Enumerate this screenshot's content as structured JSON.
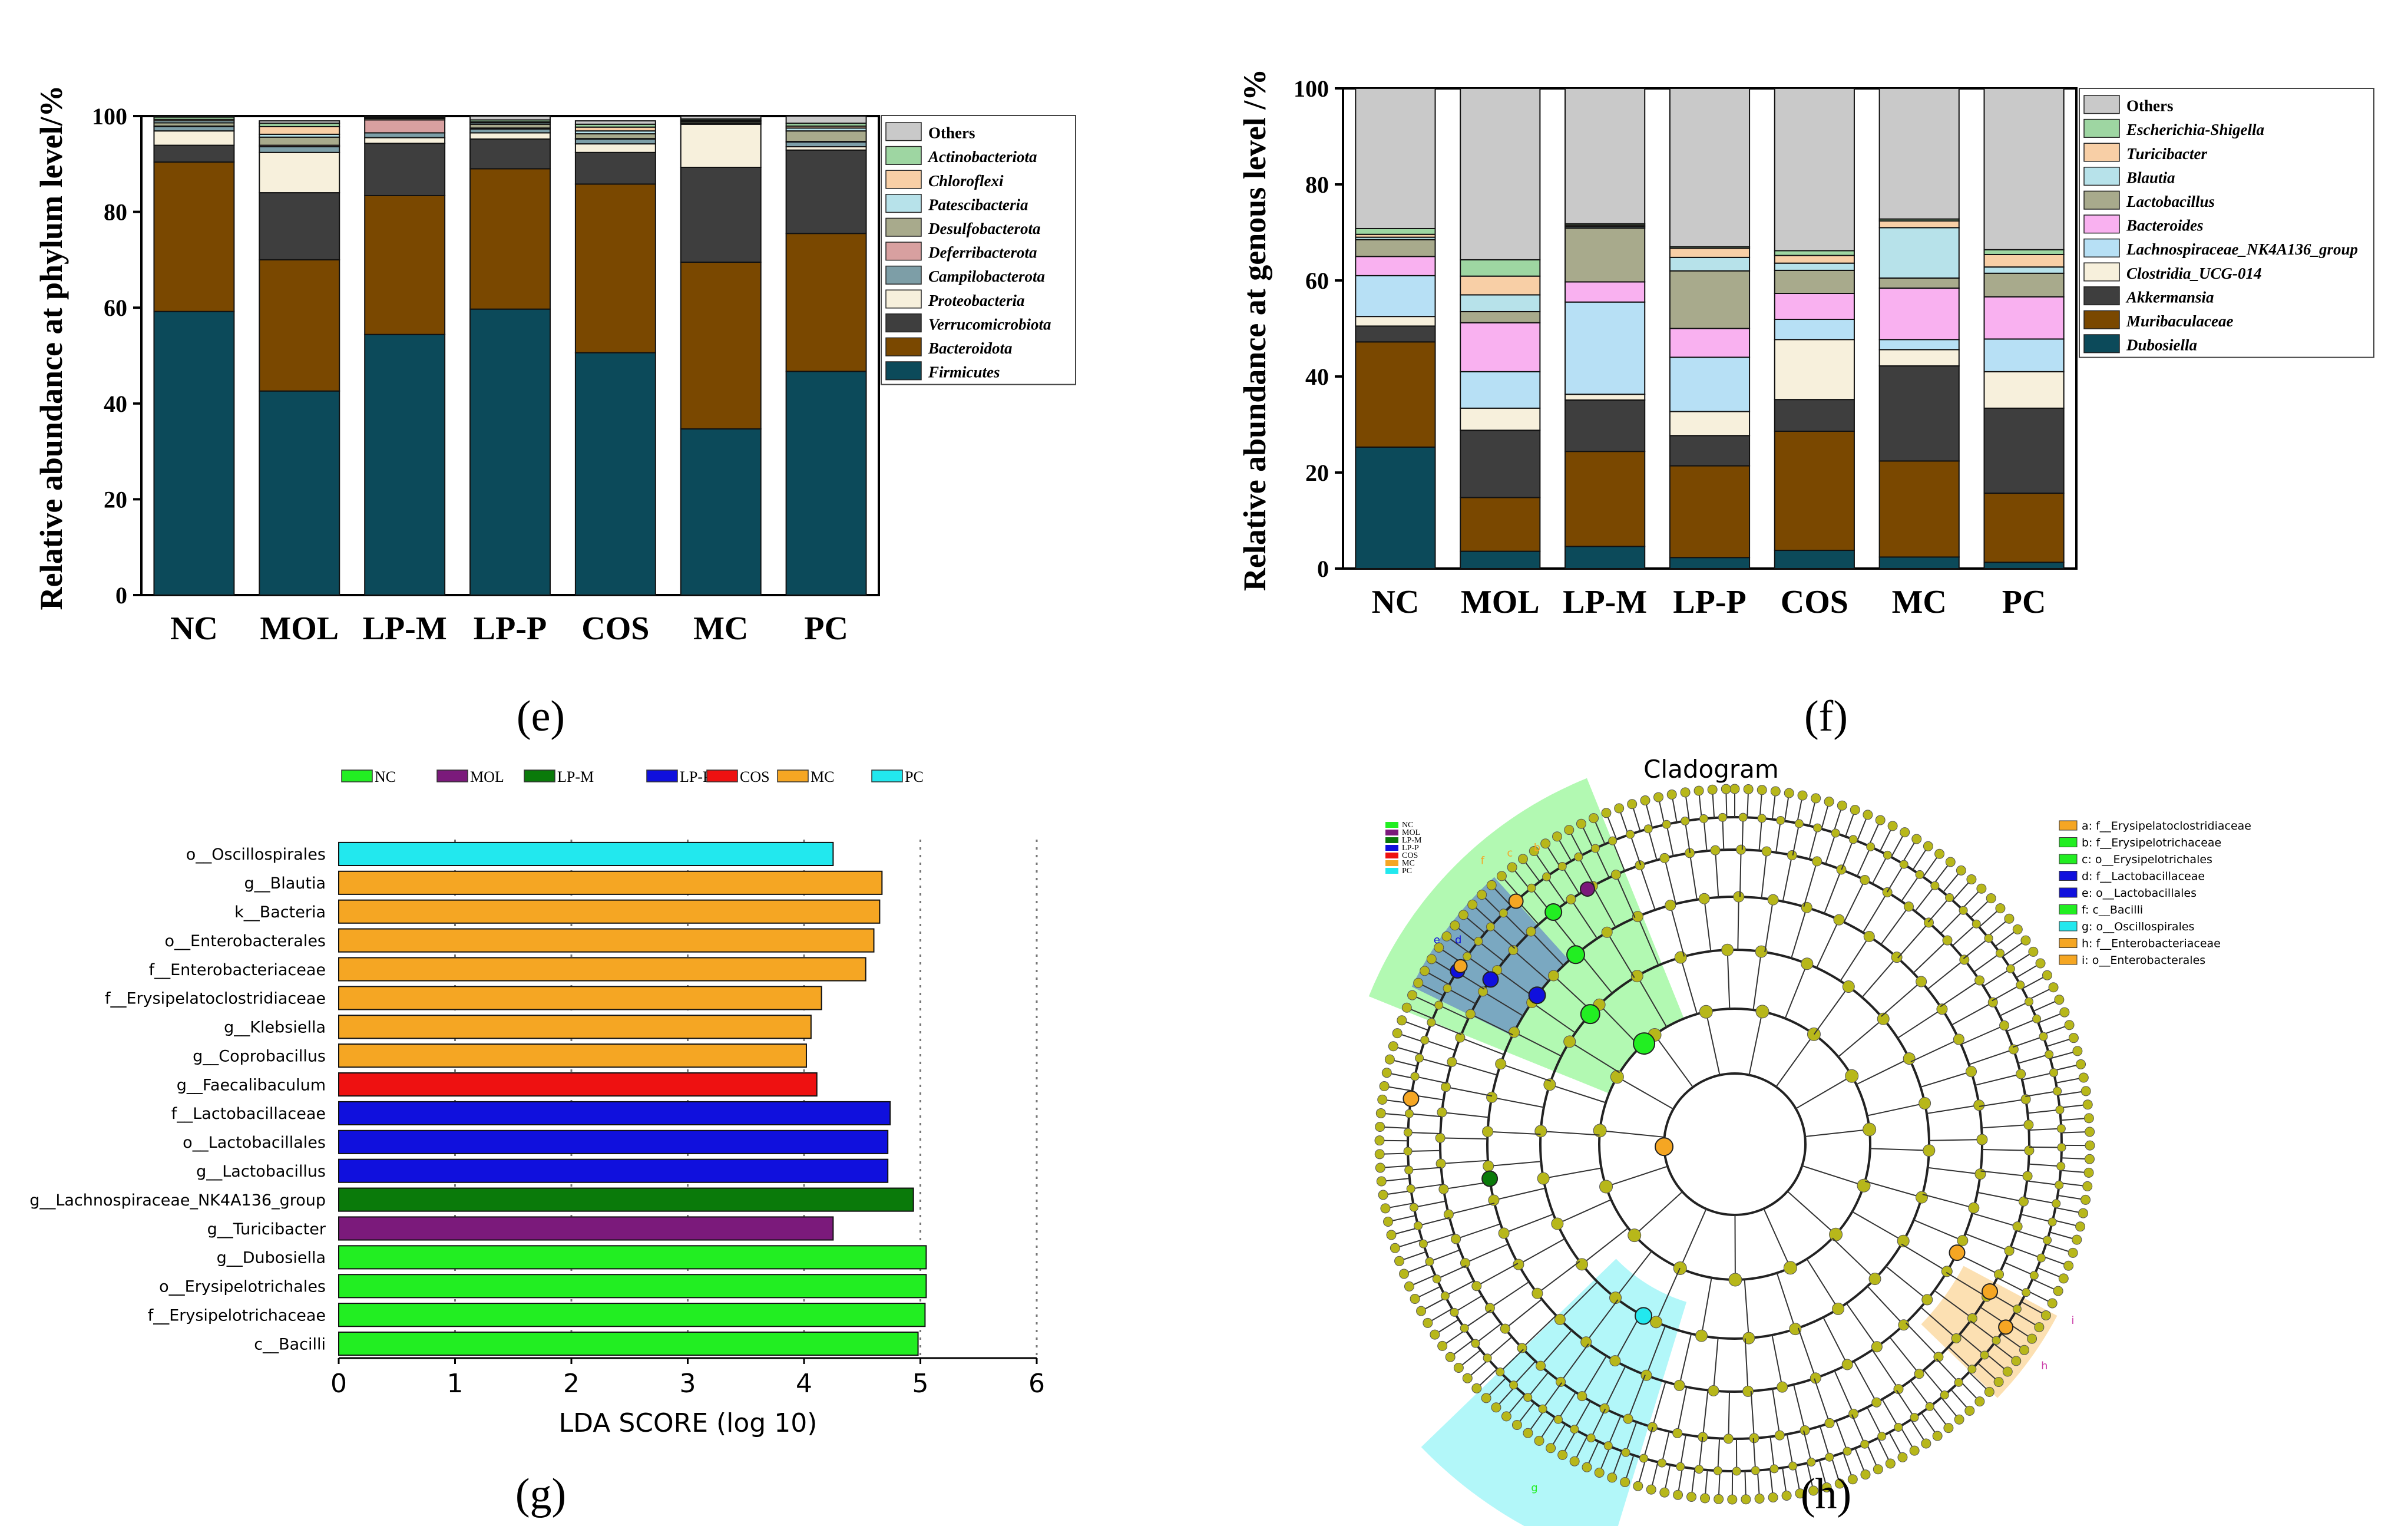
{
  "colors": {
    "Others": "#c9c9c9",
    "Firmicutes": "#0c4a5a",
    "Bacteroidota": "#7a4800",
    "Verrucomicrobiota": "#3e3e3e",
    "Proteobacteria": "#f7f0dc",
    "Campilobacterota": "#7d9ea7",
    "Deferribacterota": "#d8a0a0",
    "Desulfobacterota": "#a8aa8c",
    "Patescibacteria": "#b7e2ea",
    "Chloroflexi": "#f8cfa6",
    "Actinobacteriota": "#9ed6a2",
    "Dubosiella": "#0c4a5a",
    "Muribaculaceae": "#7a4800",
    "Akkermansia": "#3e3e3e",
    "Clostridia_UCG-014": "#f7f0dc",
    "Lachnospiraceae_NK4A136_group": "#b7e0f5",
    "Bacteroides": "#f9b1f0",
    "Lactobacillus": "#a8aa8c",
    "Blautia": "#b7e2ea",
    "Turicibacter": "#f8cfa6",
    "Escherichia-Shigella": "#9ed6a2",
    "NC": "#22ee22",
    "MOL": "#7b1a7b",
    "LP-M": "#0a7a0a",
    "LP-P": "#1010dd",
    "COS": "#ee1111",
    "MC": "#f5a623",
    "PC": "#22e8ee",
    "node": "#b7b71a"
  },
  "chart_data": [
    {
      "id": "e",
      "type": "bar",
      "stacked": true,
      "panel_label": "(e)",
      "ylabel": "Relative abundance at phylum level/%",
      "ylim": [
        0,
        100
      ],
      "yticks": [
        0,
        20,
        40,
        60,
        80,
        100
      ],
      "categories": [
        "NC",
        "MOL",
        "LP-M",
        "LP-P",
        "COS",
        "MC",
        "PC"
      ],
      "series": [
        {
          "name": "Firmicutes",
          "values": [
            59.2,
            42.6,
            54.4,
            59.7,
            50.6,
            34.7,
            46.7
          ]
        },
        {
          "name": "Bacteroidota",
          "values": [
            31.2,
            27.4,
            29.0,
            29.3,
            35.2,
            34.8,
            28.8
          ]
        },
        {
          "name": "Verrucomicrobiota",
          "values": [
            3.5,
            14.0,
            10.9,
            6.2,
            6.6,
            19.8,
            17.4
          ]
        },
        {
          "name": "Proteobacteria",
          "values": [
            3.0,
            8.4,
            1.2,
            1.3,
            1.8,
            9.0,
            0.7
          ]
        },
        {
          "name": "Campilobacterota",
          "values": [
            0.9,
            1.2,
            1.0,
            0.8,
            1.0,
            0.2,
            1.0
          ]
        },
        {
          "name": "Deferribacterota",
          "values": [
            0.1,
            0.3,
            2.7,
            0.2,
            0.1,
            0.1,
            0.1
          ]
        },
        {
          "name": "Desulfobacterota",
          "values": [
            0.7,
            1.7,
            0.3,
            0.8,
            1.0,
            0.3,
            2.2
          ]
        },
        {
          "name": "Patescibacteria",
          "values": [
            0.4,
            0.6,
            0.1,
            0.3,
            0.6,
            0.1,
            0.6
          ]
        },
        {
          "name": "Chloroflexi",
          "values": [
            0.3,
            1.6,
            0.1,
            0.2,
            0.8,
            0.1,
            0.4
          ]
        },
        {
          "name": "Actinobacteriota",
          "values": [
            0.5,
            0.7,
            0.1,
            0.4,
            0.6,
            0.3,
            0.6
          ]
        },
        {
          "name": "Others",
          "values": [
            0.2,
            0.5,
            0.2,
            0.8,
            0.7,
            0.6,
            1.5
          ]
        }
      ],
      "legend": [
        "Others",
        "Actinobacteriota",
        "Chloroflexi",
        "Patescibacteria",
        "Desulfobacterota",
        "Deferribacterota",
        "Campilobacterota",
        "Proteobacteria",
        "Verrucomicrobiota",
        "Bacteroidota",
        "Firmicutes"
      ]
    },
    {
      "id": "f",
      "type": "bar",
      "stacked": true,
      "panel_label": "(f)",
      "ylabel": "Relative abundance at genous level /%",
      "ylim": [
        0,
        100
      ],
      "yticks": [
        0,
        20,
        40,
        60,
        80,
        100
      ],
      "categories": [
        "NC",
        "MOL",
        "LP-M",
        "LP-P",
        "COS",
        "MC",
        "PC"
      ],
      "series": [
        {
          "name": "Dubosiella",
          "values": [
            25.3,
            3.6,
            4.6,
            2.3,
            3.8,
            2.4,
            1.3
          ]
        },
        {
          "name": "Muribaculaceae",
          "values": [
            21.9,
            11.2,
            19.8,
            19.1,
            24.8,
            20.0,
            14.4
          ]
        },
        {
          "name": "Akkermansia",
          "values": [
            3.3,
            14.0,
            10.7,
            6.3,
            6.6,
            19.8,
            17.7
          ]
        },
        {
          "name": "Clostridia_UCG-014",
          "values": [
            2.0,
            4.6,
            1.2,
            5.0,
            12.5,
            3.4,
            7.6
          ]
        },
        {
          "name": "Lachnospiraceae_NK4A136_group",
          "values": [
            8.5,
            7.6,
            19.2,
            11.3,
            4.2,
            2.1,
            6.8
          ]
        },
        {
          "name": "Bacteroides",
          "values": [
            4.0,
            10.2,
            4.2,
            6.0,
            5.4,
            10.7,
            8.8
          ]
        },
        {
          "name": "Lactobacillus",
          "values": [
            3.5,
            2.3,
            11.2,
            12.0,
            4.8,
            2.1,
            4.9
          ]
        },
        {
          "name": "Blautia",
          "values": [
            0.5,
            3.5,
            0.3,
            2.8,
            1.5,
            10.5,
            1.3
          ]
        },
        {
          "name": "Turicibacter",
          "values": [
            0.6,
            3.9,
            0.3,
            1.9,
            1.6,
            1.4,
            2.6
          ]
        },
        {
          "name": "Escherichia-Shigella",
          "values": [
            1.2,
            3.4,
            0.3,
            0.3,
            1.0,
            0.4,
            1.0
          ]
        },
        {
          "name": "Others",
          "values": [
            29.2,
            35.7,
            28.2,
            33.0,
            33.8,
            27.2,
            33.6
          ]
        }
      ],
      "legend": [
        "Others",
        "Escherichia-Shigella",
        "Turicibacter",
        "Blautia",
        "Lactobacillus",
        "Bacteroides",
        "Lachnospiraceae_NK4A136_group",
        "Clostridia_UCG-014",
        "Akkermansia",
        "Muribaculaceae",
        "Dubosiella"
      ]
    },
    {
      "id": "g",
      "type": "bar",
      "orientation": "horizontal",
      "panel_label": "(g)",
      "xlabel": "LDA SCORE (log 10)",
      "xlim": [
        0,
        6
      ],
      "xticks": [
        0,
        1,
        2,
        3,
        4,
        5,
        6
      ],
      "legend": [
        "NC",
        "MOL",
        "LP-M",
        "LP-P",
        "COS",
        "MC",
        "PC"
      ],
      "bars": [
        {
          "label": "o__Oscillospirales",
          "value": 4.25,
          "group": "PC"
        },
        {
          "label": "g__Blautia",
          "value": 4.67,
          "group": "MC"
        },
        {
          "label": "k__Bacteria",
          "value": 4.65,
          "group": "MC"
        },
        {
          "label": "o__Enterobacterales",
          "value": 4.6,
          "group": "MC"
        },
        {
          "label": "f__Enterobacteriaceae",
          "value": 4.53,
          "group": "MC"
        },
        {
          "label": "f__Erysipelatoclostridiaceae",
          "value": 4.15,
          "group": "MC"
        },
        {
          "label": "g__Klebsiella",
          "value": 4.06,
          "group": "MC"
        },
        {
          "label": "g__Coprobacillus",
          "value": 4.02,
          "group": "MC"
        },
        {
          "label": "g__Faecalibaculum",
          "value": 4.11,
          "group": "COS"
        },
        {
          "label": "f__Lactobacillaceae",
          "value": 4.74,
          "group": "LP-P"
        },
        {
          "label": "o__Lactobacillales",
          "value": 4.72,
          "group": "LP-P"
        },
        {
          "label": "g__Lactobacillus",
          "value": 4.72,
          "group": "LP-P"
        },
        {
          "label": "g__Lachnospiraceae_NK4A136_group",
          "value": 4.94,
          "group": "LP-M"
        },
        {
          "label": "g__Turicibacter",
          "value": 4.25,
          "group": "MOL"
        },
        {
          "label": "g__Dubosiella",
          "value": 5.05,
          "group": "NC"
        },
        {
          "label": "o__Erysipelotrichales",
          "value": 5.05,
          "group": "NC"
        },
        {
          "label": "f__Erysipelotrichaceae",
          "value": 5.04,
          "group": "NC"
        },
        {
          "label": "c__Bacilli",
          "value": 4.98,
          "group": "NC"
        }
      ]
    }
  ],
  "cladogram": {
    "title": "Cladogram",
    "panel_label": "(h)",
    "group_legend": [
      "NC",
      "MOL",
      "LP-M",
      "LP-P",
      "COS",
      "MC",
      "PC"
    ],
    "taxa_legend": [
      {
        "text": "a: f__Erysipelatoclostridiaceae",
        "color": "#f5a623"
      },
      {
        "text": "b: f__Erysipelotrichaceae",
        "color": "#22ee22"
      },
      {
        "text": "c: o__Erysipelotrichales",
        "color": "#22ee22"
      },
      {
        "text": "d: f__Lactobacillaceae",
        "color": "#1010dd"
      },
      {
        "text": "e: o__Lactobacillales",
        "color": "#1010dd"
      },
      {
        "text": "f: c__Bacilli",
        "color": "#22ee22"
      },
      {
        "text": "g: o__Oscillospirales",
        "color": "#22e8ee"
      },
      {
        "text": "h: f__Enterobacteriaceae",
        "color": "#f5a623"
      },
      {
        "text": "i: o__Enterobacterales",
        "color": "#f5a623"
      }
    ],
    "sector_labels": [
      "f",
      "c",
      "b",
      "e",
      "d",
      "g",
      "i",
      "h"
    ]
  }
}
